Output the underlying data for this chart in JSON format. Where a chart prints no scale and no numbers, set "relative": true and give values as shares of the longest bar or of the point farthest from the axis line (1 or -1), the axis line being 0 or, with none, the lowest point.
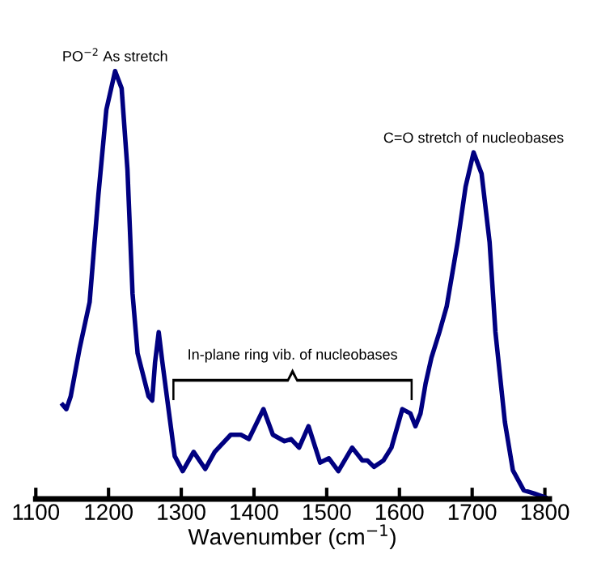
{
  "chart_data": {
    "type": "line",
    "relative": true,
    "xlabel": "Wavenumber (cm$^{−1}$)",
    "xlim": [
      1100,
      1806
    ],
    "xticks": [
      1100,
      1200,
      1300,
      1400,
      1500,
      1600,
      1700,
      1800
    ],
    "tick_labels": "x",
    "grid": false,
    "legend": false,
    "marker": "none",
    "line_style": "solid",
    "annotations": [
      {
        "text": "PO$^{−2}$ As stretch",
        "x": 1209,
        "y": 1.0
      },
      {
        "text": "C=O stretch of nucleobases",
        "x": 1702,
        "y": 0.81
      },
      "In-plane ring vib. of nucleobases"
    ],
    "series": [
      {
        "color": "#000080",
        "x": [
          1137,
          1142,
          1148,
          1160,
          1174,
          1186,
          1197,
          1209,
          1218,
          1226,
          1233,
          1240,
          1255,
          1260,
          1264,
          1269,
          1274,
          1284,
          1291,
          1302,
          1317,
          1333,
          1346,
          1368,
          1382,
          1393,
          1413,
          1426,
          1442,
          1451,
          1462,
          1475,
          1491,
          1503,
          1516,
          1535,
          1549,
          1556,
          1565,
          1578,
          1589,
          1604,
          1615,
          1622,
          1629,
          1636,
          1644,
          1655,
          1665,
          1680,
          1691,
          1702,
          1713,
          1724,
          1732,
          1745,
          1756,
          1771,
          1785,
          1800
        ],
        "values": [
          0.22,
          0.21,
          0.24,
          0.35,
          0.46,
          0.71,
          0.91,
          1.0,
          0.96,
          0.77,
          0.48,
          0.34,
          0.24,
          0.23,
          0.32,
          0.39,
          0.32,
          0.19,
          0.1,
          0.065,
          0.11,
          0.07,
          0.11,
          0.15,
          0.15,
          0.14,
          0.21,
          0.15,
          0.135,
          0.14,
          0.12,
          0.17,
          0.085,
          0.095,
          0.065,
          0.12,
          0.09,
          0.09,
          0.075,
          0.09,
          0.12,
          0.21,
          0.2,
          0.17,
          0.2,
          0.27,
          0.33,
          0.39,
          0.45,
          0.6,
          0.73,
          0.81,
          0.76,
          0.6,
          0.39,
          0.18,
          0.067,
          0.02,
          0.013,
          0.004
        ]
      }
    ]
  }
}
